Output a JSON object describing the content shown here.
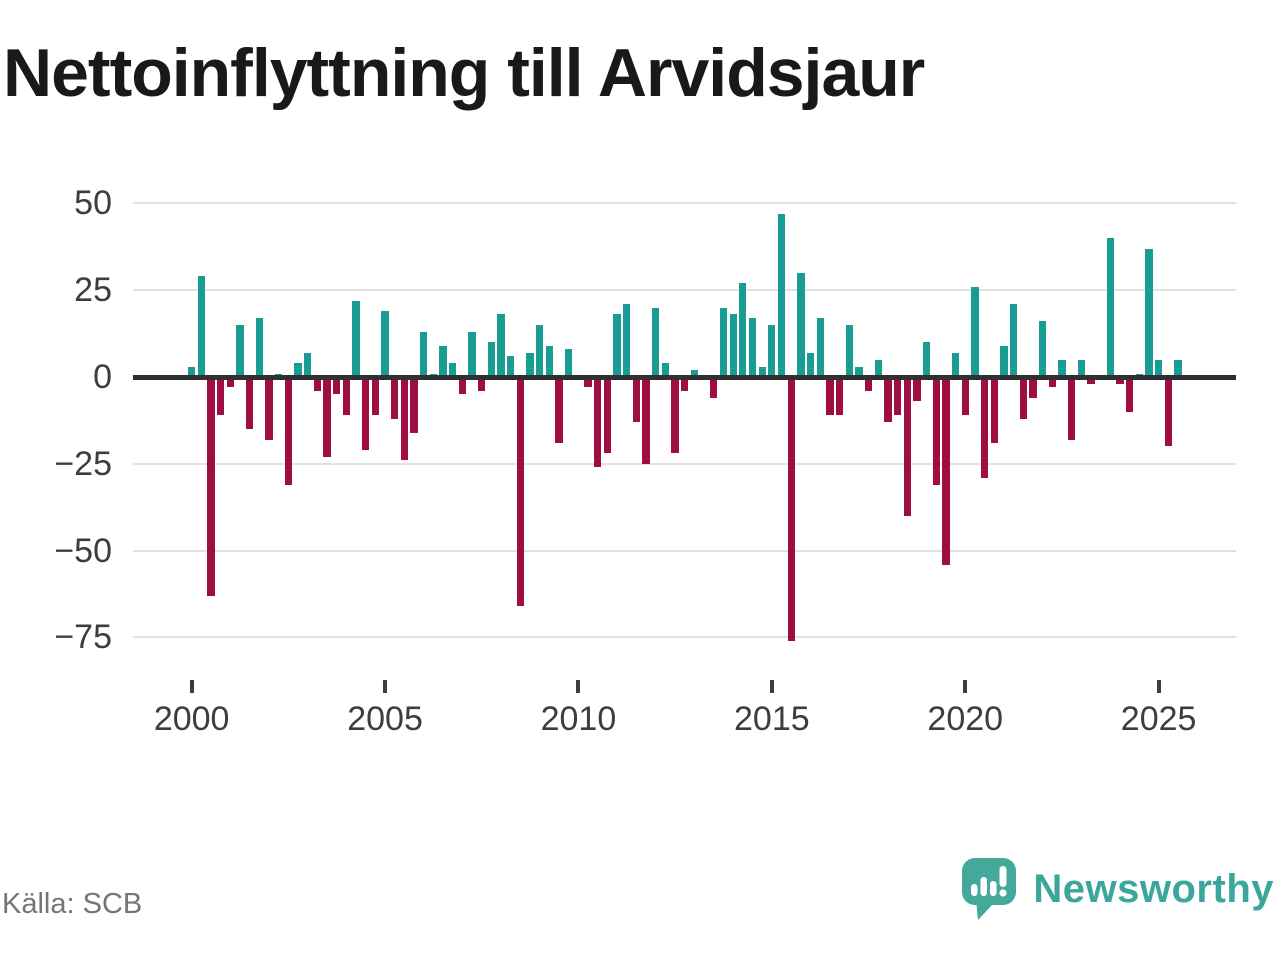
{
  "title": "Nettoinflyttning till Arvidsjaur",
  "source": "Källa: SCB",
  "logo": {
    "text": "Newsworthy"
  },
  "colors": {
    "positive": "#189c94",
    "negative": "#9e0e43",
    "grid": "#e1e1e1",
    "zero_line": "#303030",
    "axis_text": "#3d3d3d",
    "title_text": "#191919",
    "source_text": "#757575",
    "logo_teal": "#3ba79c"
  },
  "chart_data": {
    "type": "bar",
    "title": "Nettoinflyttning till Arvidsjaur",
    "xlabel": "",
    "ylabel": "",
    "ylim": [
      -81,
      54
    ],
    "grid": true,
    "y_ticks": [
      50,
      25,
      0,
      -25,
      -50,
      -75
    ],
    "x_ticks": [
      "2000",
      "2005",
      "2010",
      "2015",
      "2020",
      "2025"
    ],
    "quarters": [
      {
        "t": "2000 Q1",
        "v": 3
      },
      {
        "t": "2000 Q2",
        "v": 29
      },
      {
        "t": "2000 Q3",
        "v": -63
      },
      {
        "t": "2000 Q4",
        "v": -11
      },
      {
        "t": "2001 Q1",
        "v": -3
      },
      {
        "t": "2001 Q2",
        "v": 15
      },
      {
        "t": "2001 Q3",
        "v": -15
      },
      {
        "t": "2001 Q4",
        "v": 17
      },
      {
        "t": "2002 Q1",
        "v": -18
      },
      {
        "t": "2002 Q2",
        "v": 1
      },
      {
        "t": "2002 Q3",
        "v": -31
      },
      {
        "t": "2002 Q4",
        "v": 4
      },
      {
        "t": "2003 Q1",
        "v": 7
      },
      {
        "t": "2003 Q2",
        "v": -4
      },
      {
        "t": "2003 Q3",
        "v": -23
      },
      {
        "t": "2003 Q4",
        "v": -5
      },
      {
        "t": "2004 Q1",
        "v": -11
      },
      {
        "t": "2004 Q2",
        "v": 22
      },
      {
        "t": "2004 Q3",
        "v": -21
      },
      {
        "t": "2004 Q4",
        "v": -11
      },
      {
        "t": "2005 Q1",
        "v": 19
      },
      {
        "t": "2005 Q2",
        "v": -12
      },
      {
        "t": "2005 Q3",
        "v": -24
      },
      {
        "t": "2005 Q4",
        "v": -16
      },
      {
        "t": "2006 Q1",
        "v": 13
      },
      {
        "t": "2006 Q2",
        "v": 1
      },
      {
        "t": "2006 Q3",
        "v": 9
      },
      {
        "t": "2006 Q4",
        "v": 4
      },
      {
        "t": "2007 Q1",
        "v": -5
      },
      {
        "t": "2007 Q2",
        "v": 13
      },
      {
        "t": "2007 Q3",
        "v": -4
      },
      {
        "t": "2007 Q4",
        "v": 10
      },
      {
        "t": "2008 Q1",
        "v": 18
      },
      {
        "t": "2008 Q2",
        "v": 6
      },
      {
        "t": "2008 Q3",
        "v": -66
      },
      {
        "t": "2008 Q4",
        "v": 7
      },
      {
        "t": "2009 Q1",
        "v": 15
      },
      {
        "t": "2009 Q2",
        "v": 9
      },
      {
        "t": "2009 Q3",
        "v": -19
      },
      {
        "t": "2009 Q4",
        "v": 8
      },
      {
        "t": "2010 Q1",
        "v": 0
      },
      {
        "t": "2010 Q2",
        "v": -3
      },
      {
        "t": "2010 Q3",
        "v": -26
      },
      {
        "t": "2010 Q4",
        "v": -22
      },
      {
        "t": "2011 Q1",
        "v": 18
      },
      {
        "t": "2011 Q2",
        "v": 21
      },
      {
        "t": "2011 Q3",
        "v": -13
      },
      {
        "t": "2011 Q4",
        "v": -25
      },
      {
        "t": "2012 Q1",
        "v": 20
      },
      {
        "t": "2012 Q2",
        "v": 4
      },
      {
        "t": "2012 Q3",
        "v": -22
      },
      {
        "t": "2012 Q4",
        "v": -4
      },
      {
        "t": "2013 Q1",
        "v": 2
      },
      {
        "t": "2013 Q2",
        "v": -1
      },
      {
        "t": "2013 Q3",
        "v": -6
      },
      {
        "t": "2013 Q4",
        "v": 20
      },
      {
        "t": "2014 Q1",
        "v": 18
      },
      {
        "t": "2014 Q2",
        "v": 27
      },
      {
        "t": "2014 Q3",
        "v": 17
      },
      {
        "t": "2014 Q4",
        "v": 3
      },
      {
        "t": "2015 Q1",
        "v": 15
      },
      {
        "t": "2015 Q2",
        "v": 47
      },
      {
        "t": "2015 Q3",
        "v": -76
      },
      {
        "t": "2015 Q4",
        "v": 30
      },
      {
        "t": "2016 Q1",
        "v": 7
      },
      {
        "t": "2016 Q2",
        "v": 17
      },
      {
        "t": "2016 Q3",
        "v": -11
      },
      {
        "t": "2016 Q4",
        "v": -11
      },
      {
        "t": "2017 Q1",
        "v": 15
      },
      {
        "t": "2017 Q2",
        "v": 3
      },
      {
        "t": "2017 Q3",
        "v": -4
      },
      {
        "t": "2017 Q4",
        "v": 5
      },
      {
        "t": "2018 Q1",
        "v": -13
      },
      {
        "t": "2018 Q2",
        "v": -11
      },
      {
        "t": "2018 Q3",
        "v": -40
      },
      {
        "t": "2018 Q4",
        "v": -7
      },
      {
        "t": "2019 Q1",
        "v": 10
      },
      {
        "t": "2019 Q2",
        "v": -31
      },
      {
        "t": "2019 Q3",
        "v": -54
      },
      {
        "t": "2019 Q4",
        "v": 7
      },
      {
        "t": "2020 Q1",
        "v": -11
      },
      {
        "t": "2020 Q2",
        "v": 26
      },
      {
        "t": "2020 Q3",
        "v": -29
      },
      {
        "t": "2020 Q4",
        "v": -19
      },
      {
        "t": "2021 Q1",
        "v": 9
      },
      {
        "t": "2021 Q2",
        "v": 21
      },
      {
        "t": "2021 Q3",
        "v": -12
      },
      {
        "t": "2021 Q4",
        "v": -6
      },
      {
        "t": "2022 Q1",
        "v": 16
      },
      {
        "t": "2022 Q2",
        "v": -3
      },
      {
        "t": "2022 Q3",
        "v": 5
      },
      {
        "t": "2022 Q4",
        "v": -18
      },
      {
        "t": "2023 Q1",
        "v": 5
      },
      {
        "t": "2023 Q2",
        "v": -2
      },
      {
        "t": "2023 Q3",
        "v": -1
      },
      {
        "t": "2023 Q4",
        "v": 40
      },
      {
        "t": "2024 Q1",
        "v": -2
      },
      {
        "t": "2024 Q2",
        "v": -10
      },
      {
        "t": "2024 Q3",
        "v": 1
      },
      {
        "t": "2024 Q4",
        "v": 37
      },
      {
        "t": "2025 Q1",
        "v": 5
      },
      {
        "t": "2025 Q2",
        "v": -20
      },
      {
        "t": "2025 Q3",
        "v": 5
      }
    ]
  }
}
